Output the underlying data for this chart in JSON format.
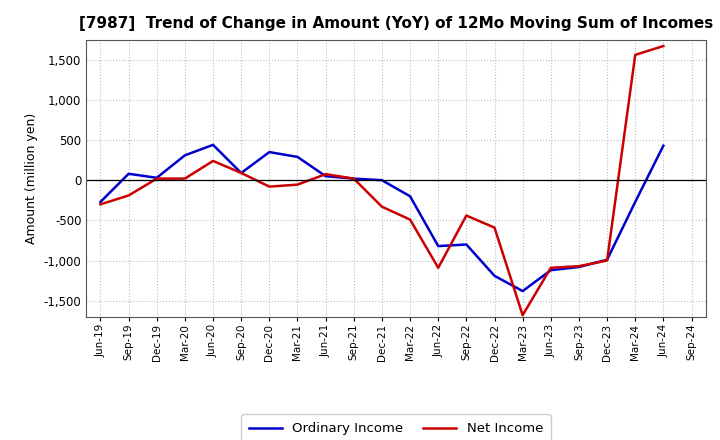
{
  "title": "[7987]  Trend of Change in Amount (YoY) of 12Mo Moving Sum of Incomes",
  "ylabel": "Amount (million yen)",
  "background_color": "#ffffff",
  "plot_bg_color": "#ffffff",
  "grid_color": "#bbbbbb",
  "x_labels": [
    "Jun-19",
    "Sep-19",
    "Dec-19",
    "Mar-20",
    "Jun-20",
    "Sep-20",
    "Dec-20",
    "Mar-21",
    "Jun-21",
    "Sep-21",
    "Dec-21",
    "Mar-22",
    "Jun-22",
    "Sep-22",
    "Dec-22",
    "Mar-23",
    "Jun-23",
    "Sep-23",
    "Dec-23",
    "Mar-24",
    "Jun-24",
    "Sep-24"
  ],
  "ordinary_income": [
    -270,
    80,
    30,
    310,
    440,
    90,
    350,
    290,
    50,
    20,
    0,
    -200,
    -820,
    -800,
    -1190,
    -1380,
    -1120,
    -1080,
    -990,
    -270,
    430,
    null
  ],
  "net_income": [
    -300,
    -190,
    20,
    20,
    240,
    90,
    -80,
    -55,
    75,
    20,
    -330,
    -490,
    -1090,
    -440,
    -590,
    -1680,
    -1090,
    -1070,
    -1000,
    1560,
    1670,
    null
  ],
  "ordinary_income_color": "#0000cc",
  "net_income_color": "#cc0000",
  "ylim": [
    -1700,
    1750
  ],
  "yticks": [
    -1500,
    -1000,
    -500,
    0,
    500,
    1000,
    1500
  ],
  "legend_labels": [
    "Ordinary Income",
    "Net Income"
  ],
  "line_width": 1.8
}
